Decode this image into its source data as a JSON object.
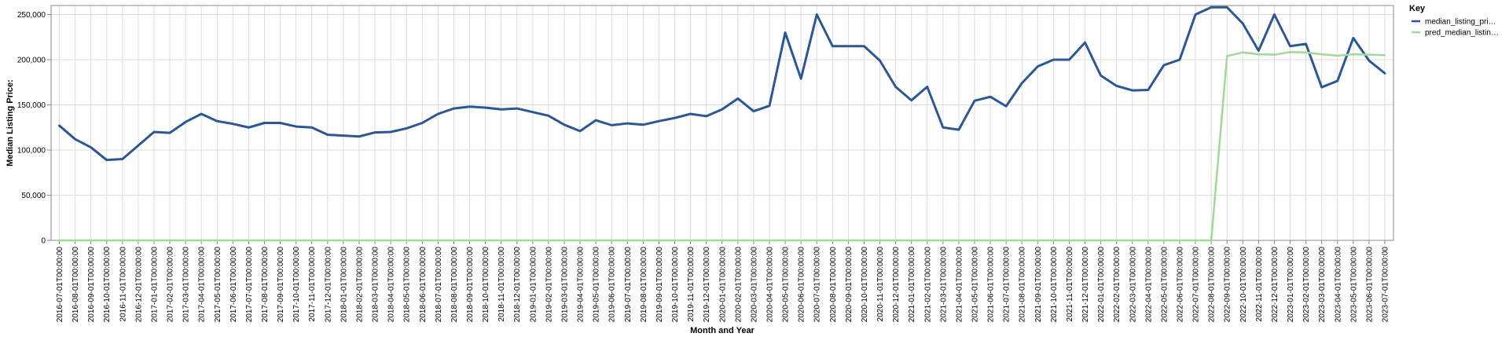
{
  "chart_data": {
    "type": "line",
    "title": "",
    "xlabel": "Month and Year",
    "ylabel": "Median Listing Price:",
    "ylim": [
      0,
      260000
    ],
    "yticks": [
      0,
      50000,
      100000,
      150000,
      200000,
      250000
    ],
    "ytick_labels": [
      "0",
      "50,000",
      "100,000",
      "150,000",
      "200,000",
      "250,000"
    ],
    "grid": true,
    "legend": {
      "title": "Key",
      "position": "top-right"
    },
    "x": [
      "2016-07-01T00:00:00",
      "2016-08-01T00:00:00",
      "2016-09-01T00:00:00",
      "2016-10-01T00:00:00",
      "2016-11-01T00:00:00",
      "2016-12-01T00:00:00",
      "2017-01-01T00:00:00",
      "2017-02-01T00:00:00",
      "2017-03-01T00:00:00",
      "2017-04-01T00:00:00",
      "2017-05-01T00:00:00",
      "2017-06-01T00:00:00",
      "2017-07-01T00:00:00",
      "2017-08-01T00:00:00",
      "2017-09-01T00:00:00",
      "2017-10-01T00:00:00",
      "2017-11-01T00:00:00",
      "2017-12-01T00:00:00",
      "2018-01-01T00:00:00",
      "2018-02-01T00:00:00",
      "2018-03-01T00:00:00",
      "2018-04-01T00:00:00",
      "2018-05-01T00:00:00",
      "2018-06-01T00:00:00",
      "2018-07-01T00:00:00",
      "2018-08-01T00:00:00",
      "2018-09-01T00:00:00",
      "2018-10-01T00:00:00",
      "2018-11-01T00:00:00",
      "2018-12-01T00:00:00",
      "2019-01-01T00:00:00",
      "2019-02-01T00:00:00",
      "2019-03-01T00:00:00",
      "2019-04-01T00:00:00",
      "2019-05-01T00:00:00",
      "2019-06-01T00:00:00",
      "2019-07-01T00:00:00",
      "2019-08-01T00:00:00",
      "2019-09-01T00:00:00",
      "2019-10-01T00:00:00",
      "2019-11-01T00:00:00",
      "2019-12-01T00:00:00",
      "2020-01-01T00:00:00",
      "2020-02-01T00:00:00",
      "2020-03-01T00:00:00",
      "2020-04-01T00:00:00",
      "2020-05-01T00:00:00",
      "2020-06-01T00:00:00",
      "2020-07-01T00:00:00",
      "2020-08-01T00:00:00",
      "2020-09-01T00:00:00",
      "2020-10-01T00:00:00",
      "2020-11-01T00:00:00",
      "2020-12-01T00:00:00",
      "2021-01-01T00:00:00",
      "2021-02-01T00:00:00",
      "2021-03-01T00:00:00",
      "2021-04-01T00:00:00",
      "2021-05-01T00:00:00",
      "2021-06-01T00:00:00",
      "2021-07-01T00:00:00",
      "2021-08-01T00:00:00",
      "2021-09-01T00:00:00",
      "2021-10-01T00:00:00",
      "2021-11-01T00:00:00",
      "2021-12-01T00:00:00",
      "2022-01-01T00:00:00",
      "2022-02-01T00:00:00",
      "2022-03-01T00:00:00",
      "2022-04-01T00:00:00",
      "2022-05-01T00:00:00",
      "2022-06-01T00:00:00",
      "2022-07-01T00:00:00",
      "2022-08-01T00:00:00",
      "2022-09-01T00:00:00",
      "2022-10-01T00:00:00",
      "2022-11-01T00:00:00",
      "2022-12-01T00:00:00",
      "2023-01-01T00:00:00",
      "2023-02-01T00:00:00",
      "2023-03-01T00:00:00",
      "2023-04-01T00:00:00",
      "2023-05-01T00:00:00",
      "2023-06-01T00:00:00",
      "2023-07-01T00:00:00"
    ],
    "series": [
      {
        "name": "median_listing_pri…",
        "color": "#2b5797",
        "values": [
          127000,
          112000,
          103000,
          89000,
          90000,
          105000,
          120000,
          119000,
          131000,
          140000,
          132000,
          129000,
          125000,
          130000,
          130000,
          126000,
          125000,
          117000,
          116000,
          115000,
          119500,
          120000,
          124000,
          130000,
          140000,
          146000,
          148000,
          147000,
          145000,
          146000,
          142000,
          138000,
          128000,
          121000,
          133000,
          127500,
          129500,
          128000,
          132000,
          135500,
          140000,
          137500,
          145000,
          157000,
          143000,
          149000,
          230000,
          179000,
          250000,
          215000,
          215000,
          215000,
          199000,
          170000,
          155000,
          170000,
          125000,
          122500,
          154500,
          159000,
          148500,
          174000,
          192500,
          200000,
          200000,
          219000,
          182500,
          171000,
          166000,
          166500,
          194000,
          200000,
          250000,
          258000,
          258000,
          240000,
          210000,
          250000,
          215000,
          217500,
          169500,
          176500,
          224000,
          199000,
          185000
        ]
      },
      {
        "name": "pred_median_listin…",
        "color": "#a2d99a",
        "values": [
          0,
          0,
          0,
          0,
          0,
          0,
          0,
          0,
          0,
          0,
          0,
          0,
          0,
          0,
          0,
          0,
          0,
          0,
          0,
          0,
          0,
          0,
          0,
          0,
          0,
          0,
          0,
          0,
          0,
          0,
          0,
          0,
          0,
          0,
          0,
          0,
          0,
          0,
          0,
          0,
          0,
          0,
          0,
          0,
          0,
          0,
          0,
          0,
          0,
          0,
          0,
          0,
          0,
          0,
          0,
          0,
          0,
          0,
          0,
          0,
          0,
          0,
          0,
          0,
          0,
          0,
          0,
          0,
          0,
          0,
          0,
          0,
          0,
          0,
          204000,
          208000,
          206000,
          205500,
          208500,
          208000,
          206000,
          204500,
          206000,
          205500,
          205000
        ]
      }
    ]
  }
}
